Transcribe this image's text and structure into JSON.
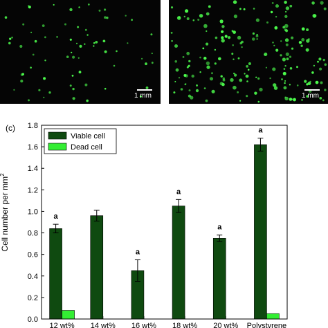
{
  "panels": [
    {
      "scale_label": "1 mm",
      "cell_color": "#4dff4d"
    },
    {
      "scale_label": "1 mm",
      "cell_color": "#4dff4d"
    }
  ],
  "chart_data": {
    "type": "bar",
    "panel_label": "(c)",
    "title": "",
    "xlabel": "",
    "ylabel": "Cell number per mm",
    "ylabel_superscript": "2",
    "ylim": [
      0,
      1.8
    ],
    "yticks": [
      "0.0",
      "0.2",
      "0.4",
      "0.6",
      "0.8",
      "1.0",
      "1.2",
      "1.4",
      "1.6",
      "1.8"
    ],
    "categories": [
      "12 wt%",
      "14 wt%",
      "16 wt%",
      "18 wt%",
      "20 wt%",
      "Polystyrene"
    ],
    "series": [
      {
        "name": "Viable cell",
        "color": "#0f4a10",
        "values": [
          0.84,
          0.96,
          0.45,
          1.05,
          0.75,
          1.62
        ],
        "errors": [
          0.04,
          0.05,
          0.1,
          0.06,
          0.03,
          0.06
        ]
      },
      {
        "name": "Dead cell",
        "color": "#33ee33",
        "values": [
          0.08,
          0.0,
          0.0,
          0.0,
          0.0,
          0.05
        ],
        "errors": [
          0,
          0,
          0,
          0,
          0,
          0
        ]
      }
    ],
    "annotations": [
      "a",
      "",
      "a",
      "a",
      "a",
      "a"
    ],
    "legend_position": "top-left",
    "grid": false
  }
}
